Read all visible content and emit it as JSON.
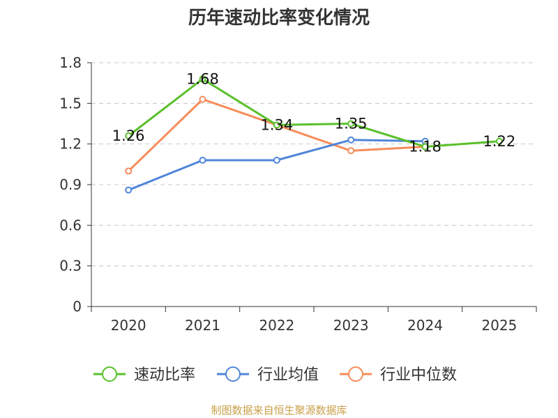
{
  "chart_data": {
    "type": "line",
    "title": "历年速动比率变化情况",
    "categories": [
      "2020",
      "2021",
      "2022",
      "2023",
      "2024",
      "2025"
    ],
    "ylim": [
      0,
      1.8
    ],
    "yticks": [
      "0",
      "0.3",
      "0.6",
      "0.9",
      "1.2",
      "1.5",
      "1.8"
    ],
    "grid": true,
    "legend_position": "bottom",
    "series": [
      {
        "name": "速动比率",
        "color": "#5ac02b",
        "values": [
          1.26,
          1.68,
          1.34,
          1.35,
          1.18,
          1.22
        ],
        "labels": [
          "1.26",
          "1.68",
          "1.34",
          "1.35",
          "1.18",
          "1.22"
        ]
      },
      {
        "name": "行业均值",
        "color": "#4f86d9",
        "values": [
          0.86,
          1.08,
          1.08,
          1.23,
          1.22,
          null
        ]
      },
      {
        "name": "行业中位数",
        "color": "#f68c59",
        "values": [
          1.0,
          1.53,
          1.34,
          1.15,
          1.18,
          null
        ]
      }
    ],
    "source": "制图数据来自恒生聚源数据库"
  }
}
